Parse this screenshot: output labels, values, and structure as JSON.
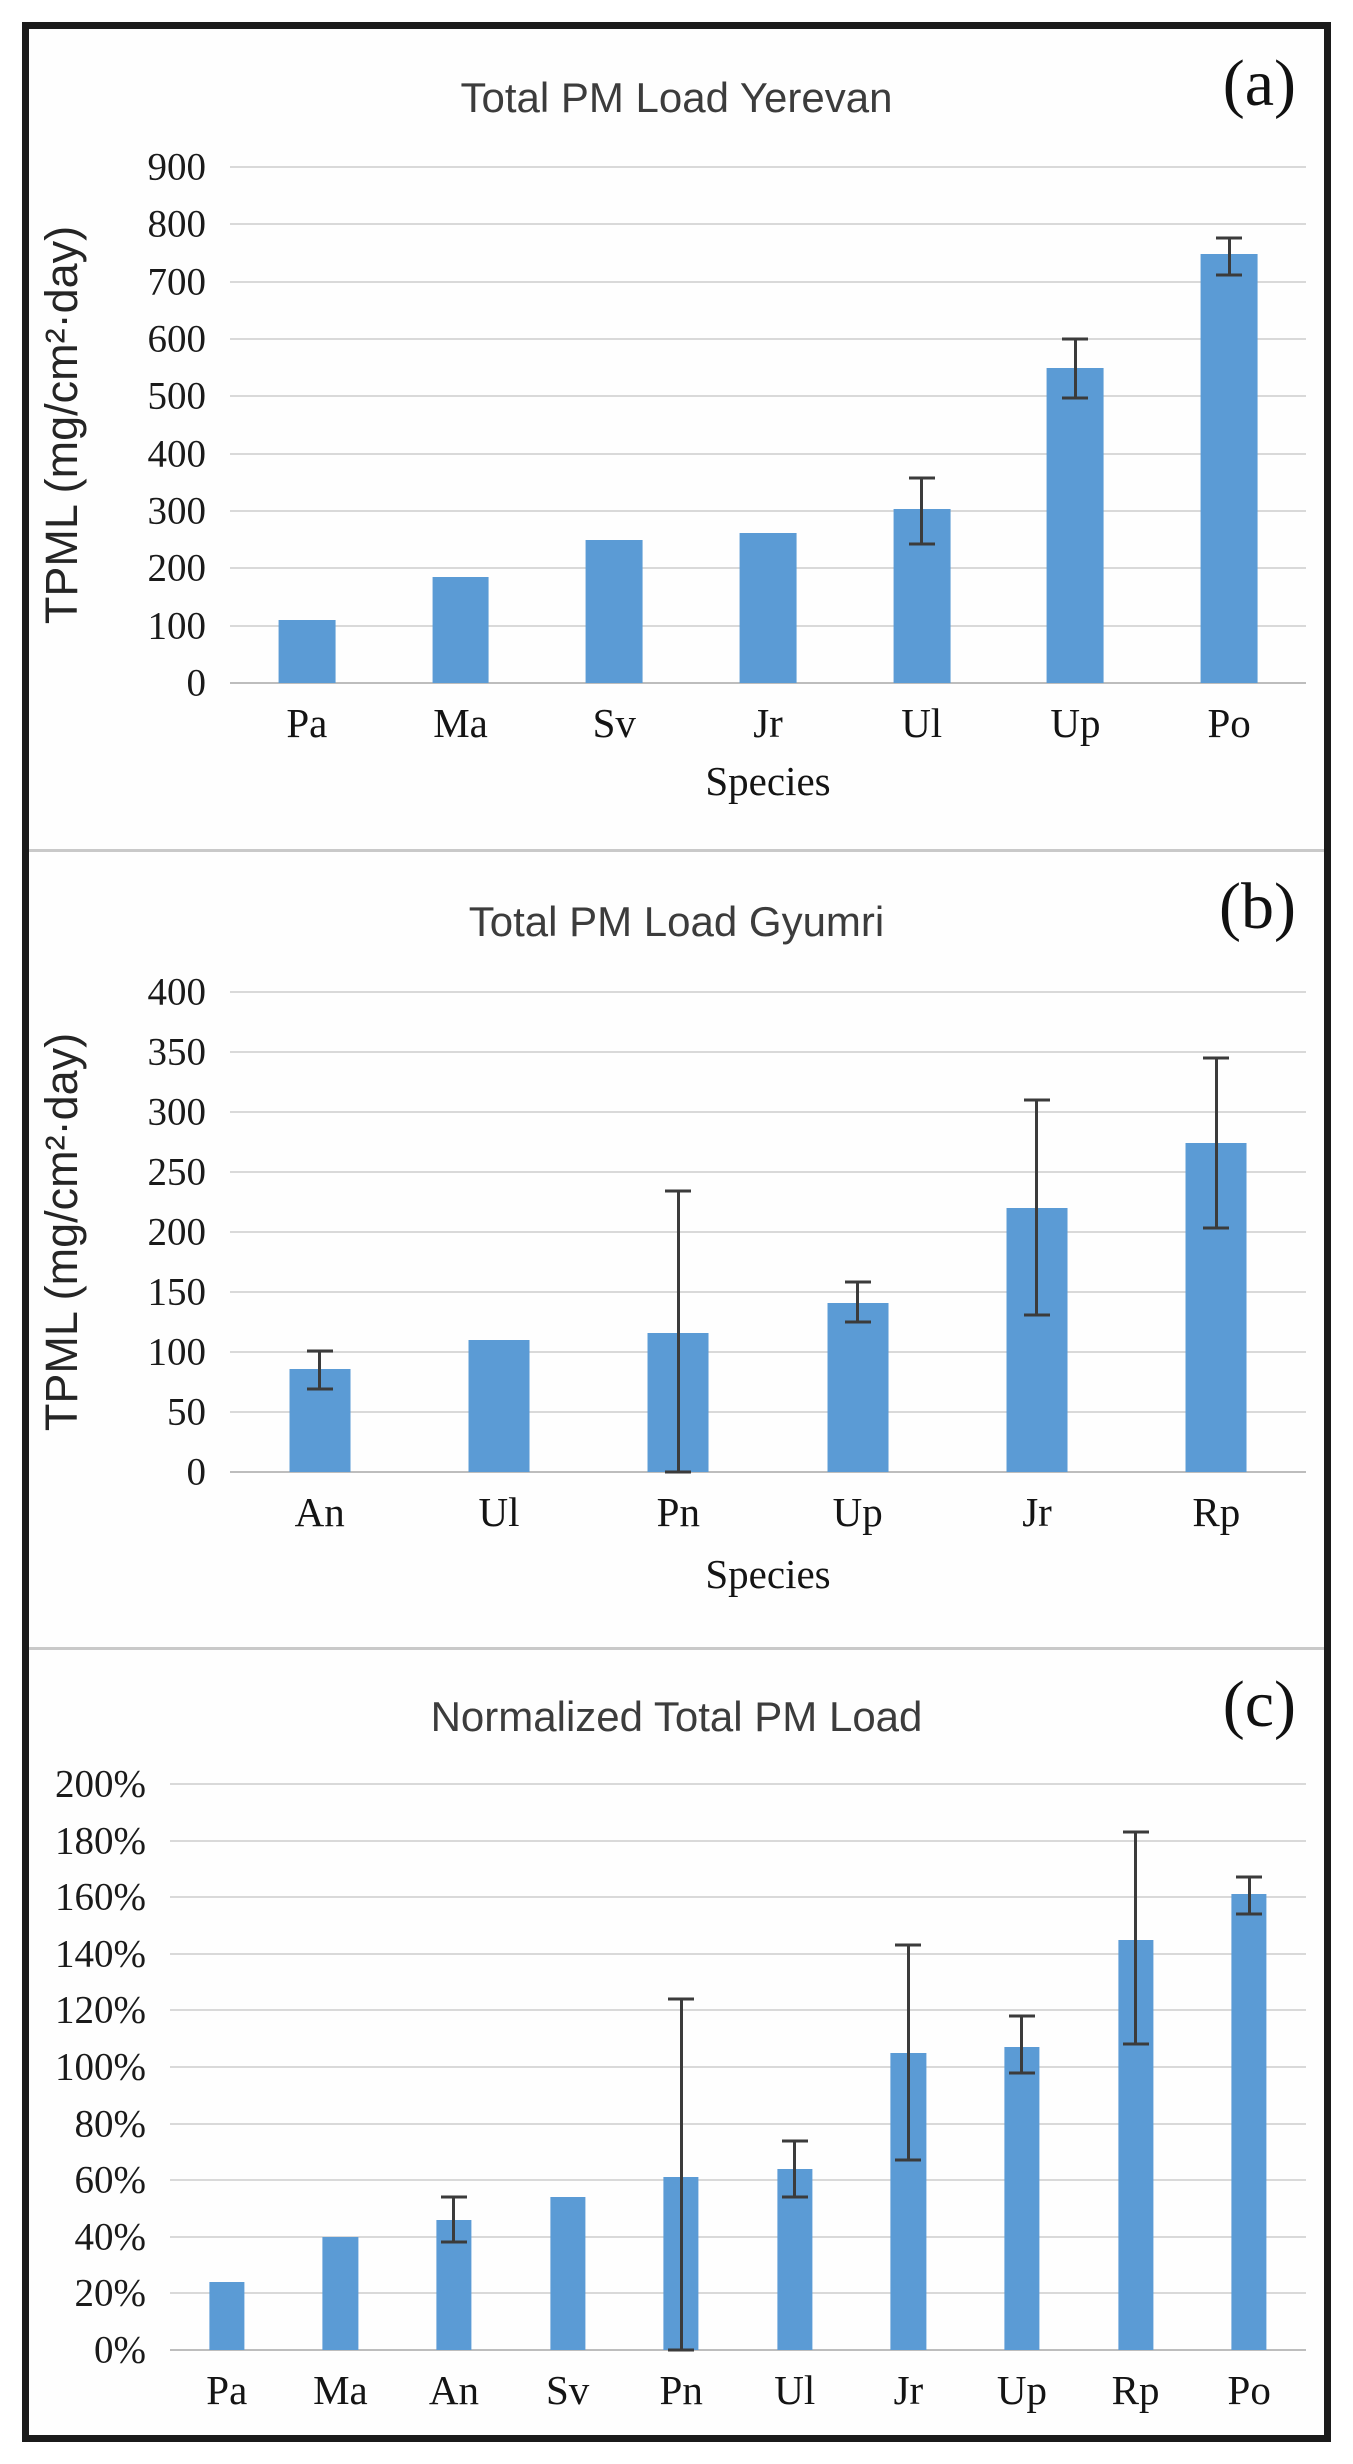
{
  "figure": {
    "background": "#ffffff",
    "frame_color": "#1b1b1b",
    "gridline_color": "#d9d9d9",
    "error_bar_color": "#3b3b3b"
  },
  "chart_data": [
    {
      "type": "bar",
      "panel_label": "(a)",
      "title": "Total PM Load Yerevan",
      "xlabel": "Species",
      "ylabel": "TPML (mg/cm²·day)",
      "ylim": [
        0,
        900
      ],
      "grid": true,
      "legend_position": "none",
      "bar_color": "#5B9BD5",
      "yticks": [
        {
          "value": 0,
          "label": "0"
        },
        {
          "value": 100,
          "label": "100"
        },
        {
          "value": 200,
          "label": "200"
        },
        {
          "value": 300,
          "label": "300"
        },
        {
          "value": 400,
          "label": "400"
        },
        {
          "value": 500,
          "label": "500"
        },
        {
          "value": 600,
          "label": "600"
        },
        {
          "value": 700,
          "label": "700"
        },
        {
          "value": 800,
          "label": "800"
        },
        {
          "value": 900,
          "label": "900"
        }
      ],
      "categories": [
        "Pa",
        "Ma",
        "Sv",
        "Jr",
        "Ul",
        "Up",
        "Po"
      ],
      "values": [
        110,
        185,
        250,
        261,
        303,
        550,
        748
      ],
      "error_low": [
        null,
        null,
        null,
        null,
        243,
        497,
        712
      ],
      "error_high": [
        null,
        null,
        null,
        null,
        358,
        600,
        777
      ]
    },
    {
      "type": "bar",
      "panel_label": "(b)",
      "title": "Total PM Load Gyumri",
      "xlabel": "Species",
      "ylabel": "TPML (mg/cm²·day)",
      "ylim": [
        0,
        400
      ],
      "grid": true,
      "legend_position": "none",
      "bar_color": "#5B9BD5",
      "yticks": [
        {
          "value": 0,
          "label": "0"
        },
        {
          "value": 50,
          "label": "50"
        },
        {
          "value": 100,
          "label": "100"
        },
        {
          "value": 150,
          "label": "150"
        },
        {
          "value": 200,
          "label": "200"
        },
        {
          "value": 250,
          "label": "250"
        },
        {
          "value": 300,
          "label": "300"
        },
        {
          "value": 350,
          "label": "350"
        },
        {
          "value": 400,
          "label": "400"
        }
      ],
      "categories": [
        "An",
        "Ul",
        "Pn",
        "Up",
        "Jr",
        "Rp"
      ],
      "values": [
        86,
        110,
        116,
        141,
        220,
        274
      ],
      "error_low": [
        69,
        null,
        0,
        125,
        131,
        203
      ],
      "error_high": [
        101,
        null,
        234,
        158,
        310,
        345
      ]
    },
    {
      "type": "bar",
      "panel_label": "(c)",
      "title": "Normalized Total PM Load",
      "xlabel": "",
      "ylabel": "",
      "ylim": [
        0,
        200
      ],
      "grid": true,
      "legend_position": "none",
      "bar_color": "#5B9BD5",
      "yticks": [
        {
          "value": 0,
          "label": "0%"
        },
        {
          "value": 20,
          "label": "20%"
        },
        {
          "value": 40,
          "label": "40%"
        },
        {
          "value": 60,
          "label": "60%"
        },
        {
          "value": 80,
          "label": "80%"
        },
        {
          "value": 100,
          "label": "100%"
        },
        {
          "value": 120,
          "label": "120%"
        },
        {
          "value": 140,
          "label": "140%"
        },
        {
          "value": 160,
          "label": "160%"
        },
        {
          "value": 180,
          "label": "180%"
        },
        {
          "value": 200,
          "label": "200%"
        }
      ],
      "categories": [
        "Pa",
        "Ma",
        "An",
        "Sv",
        "Pn",
        "Ul",
        "Jr",
        "Up",
        "Rp",
        "Po"
      ],
      "values": [
        24,
        40,
        46,
        54,
        61,
        64,
        105,
        107,
        145,
        161
      ],
      "error_low": [
        null,
        null,
        38,
        null,
        0,
        54,
        67,
        98,
        108,
        154
      ],
      "error_high": [
        null,
        null,
        54,
        null,
        124,
        74,
        143,
        118,
        183,
        167
      ]
    }
  ]
}
